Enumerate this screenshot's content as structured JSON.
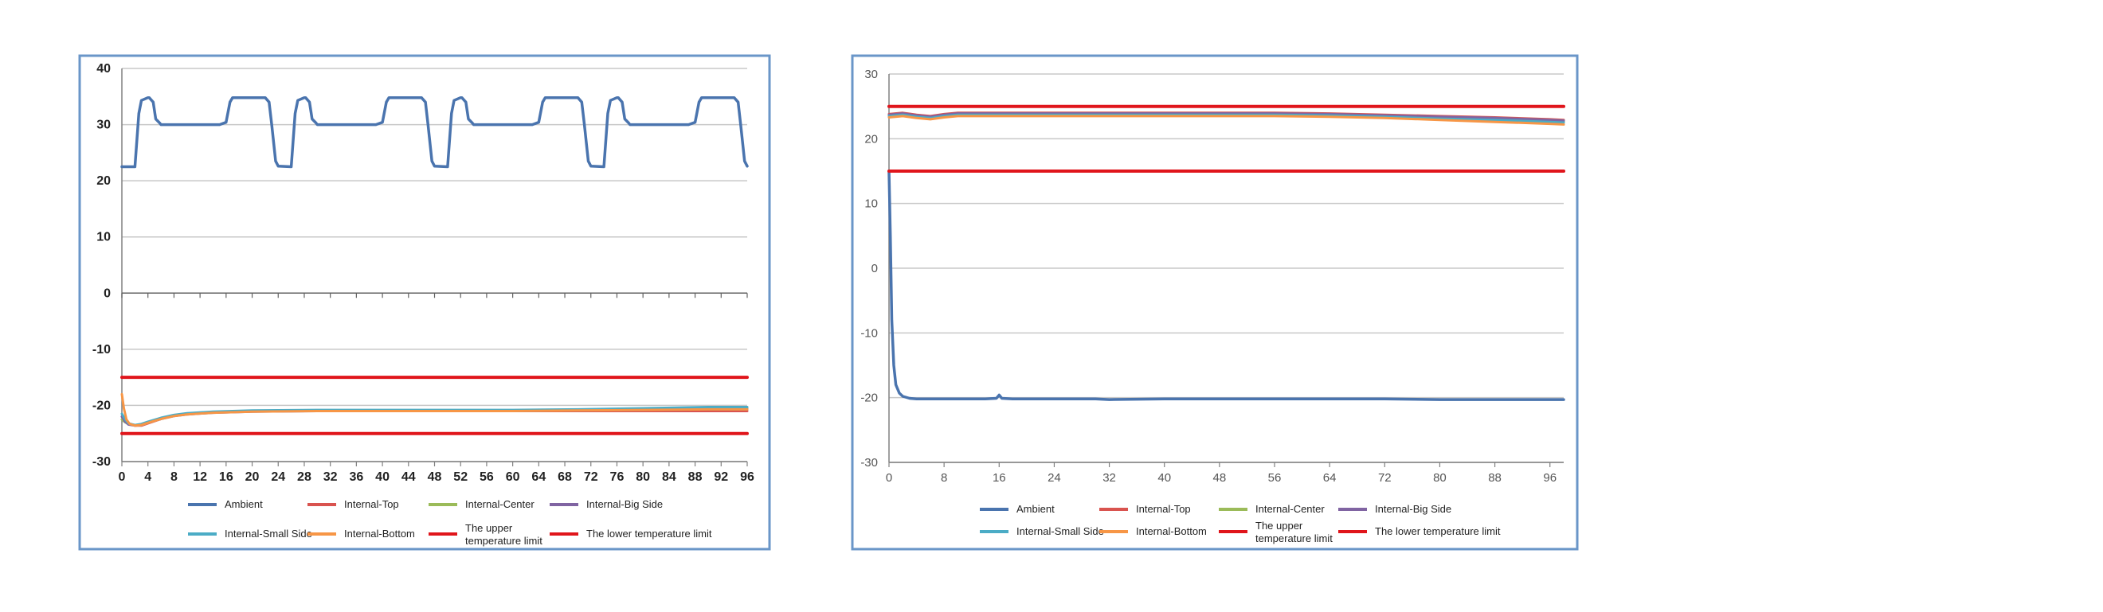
{
  "colors": {
    "border": "#6a96c8",
    "grid": "#c8c8c8",
    "axis": "#808080",
    "ambient": "#4a74ae",
    "internal_top": "#d9534f",
    "internal_center": "#9bbb59",
    "internal_big_side": "#8064a2",
    "internal_small_side": "#4bacc6",
    "internal_bottom": "#f79646",
    "upper_limit": "#e0151b",
    "lower_limit": "#e0151b"
  },
  "chart_data": [
    {
      "type": "line",
      "xlim": [
        0,
        96
      ],
      "ylim": [
        -30,
        40
      ],
      "xticks": [
        "0",
        "4",
        "8",
        "12",
        "16",
        "20",
        "24",
        "28",
        "32",
        "36",
        "40",
        "44",
        "48",
        "52",
        "56",
        "60",
        "64",
        "68",
        "72",
        "76",
        "80",
        "84",
        "88",
        "92",
        "96"
      ],
      "yticks": [
        "40",
        "30",
        "20",
        "10",
        "0",
        "-10",
        "-20",
        "-30"
      ],
      "grid": true,
      "legend_position": "bottom",
      "series": [
        {
          "name": "Ambient",
          "key": "ambient",
          "x": [
            0,
            2,
            2.6,
            3,
            4,
            4.2,
            4.8,
            5.2,
            5.8,
            6,
            10,
            15,
            16,
            16.6,
            17,
            22,
            22.6,
            23,
            23.6,
            24,
            26,
            26.6,
            27,
            28,
            28.2,
            28.8,
            29.2,
            29.8,
            30,
            34,
            39,
            40,
            40.6,
            41,
            46,
            46.6,
            47,
            47.6,
            48,
            50,
            50.6,
            51,
            52,
            52.2,
            52.8,
            53.2,
            53.8,
            54,
            58,
            63,
            64,
            64.6,
            65,
            70,
            70.6,
            71,
            71.6,
            72,
            74,
            74.6,
            75,
            76,
            76.2,
            76.8,
            77.2,
            77.8,
            78,
            82,
            87,
            88,
            88.6,
            89,
            94,
            94.6,
            95,
            95.6,
            96
          ],
          "y": [
            22.5,
            22.5,
            32,
            34.3,
            34.8,
            34.8,
            34,
            31,
            30.3,
            30,
            30,
            30,
            30.4,
            34,
            34.8,
            34.8,
            34,
            30,
            23.5,
            22.6,
            22.5,
            32,
            34.3,
            34.8,
            34.8,
            34,
            31,
            30.3,
            30,
            30,
            30,
            30.4,
            34,
            34.8,
            34.8,
            34,
            30,
            23.5,
            22.6,
            22.5,
            32,
            34.3,
            34.8,
            34.8,
            34,
            31,
            30.3,
            30,
            30,
            30,
            30.4,
            34,
            34.8,
            34.8,
            34,
            30,
            23.5,
            22.6,
            22.5,
            32,
            34.3,
            34.8,
            34.8,
            34,
            31,
            30.3,
            30,
            30,
            30,
            30.4,
            34,
            34.8,
            34.8,
            34,
            30,
            23.5,
            22.6
          ]
        },
        {
          "name": "Internal-Top",
          "key": "internal_top",
          "x": [
            0,
            0.5,
            1,
            2,
            3,
            4,
            6,
            8,
            10,
            14,
            20,
            30,
            40,
            50,
            60,
            70,
            80,
            90,
            96
          ],
          "y": [
            -22,
            -22.8,
            -23.2,
            -23.6,
            -23.6,
            -23.2,
            -22.4,
            -21.8,
            -21.5,
            -21.2,
            -21,
            -21,
            -21,
            -21,
            -21,
            -21,
            -21,
            -21,
            -21
          ]
        },
        {
          "name": "Internal-Center",
          "key": "internal_center",
          "x": [
            0,
            0.5,
            1,
            2,
            3,
            4,
            6,
            8,
            10,
            14,
            20,
            30,
            40,
            50,
            60,
            70,
            80,
            90,
            96
          ],
          "y": [
            -22.5,
            -23,
            -23.3,
            -23.5,
            -23.4,
            -23,
            -22.3,
            -21.8,
            -21.5,
            -21.2,
            -21,
            -20.9,
            -20.9,
            -20.9,
            -20.9,
            -20.8,
            -20.6,
            -20.5,
            -20.5
          ]
        },
        {
          "name": "Internal-Big Side",
          "key": "internal_big_side",
          "x": [
            0,
            0.5,
            1,
            2,
            3,
            4,
            6,
            8,
            10,
            14,
            20,
            30,
            40,
            50,
            60,
            70,
            80,
            90,
            96
          ],
          "y": [
            -22,
            -22.9,
            -23.4,
            -23.6,
            -23.5,
            -23.1,
            -22.4,
            -21.9,
            -21.6,
            -21.3,
            -21.1,
            -21,
            -21,
            -21,
            -21,
            -20.9,
            -20.8,
            -20.7,
            -20.7
          ]
        },
        {
          "name": "Internal-Small Side",
          "key": "internal_small_side",
          "x": [
            0,
            0.5,
            1,
            2,
            3,
            4,
            6,
            8,
            10,
            14,
            20,
            30,
            40,
            50,
            60,
            70,
            80,
            90,
            96
          ],
          "y": [
            -21.5,
            -22.5,
            -23.2,
            -23.5,
            -23.3,
            -22.9,
            -22.2,
            -21.7,
            -21.4,
            -21.1,
            -20.9,
            -20.8,
            -20.8,
            -20.8,
            -20.8,
            -20.7,
            -20.5,
            -20.3,
            -20.3
          ]
        },
        {
          "name": "Internal-Bottom",
          "key": "internal_bottom",
          "x": [
            0,
            0.3,
            0.7,
            1.2,
            2,
            3,
            4,
            6,
            8,
            10,
            14,
            20,
            30,
            40,
            50,
            60,
            70,
            80,
            90,
            96
          ],
          "y": [
            -18,
            -20.5,
            -22.5,
            -23.3,
            -23.6,
            -23.5,
            -23.1,
            -22.4,
            -21.9,
            -21.6,
            -21.3,
            -21.1,
            -21,
            -21,
            -21,
            -21,
            -20.9,
            -20.8,
            -20.7,
            -20.7
          ]
        },
        {
          "name": "The upper temperature limit",
          "key": "upper_limit",
          "x": [
            0,
            96
          ],
          "y": [
            -15,
            -15
          ]
        },
        {
          "name": "The lower temperature limit",
          "key": "lower_limit",
          "x": [
            0,
            96
          ],
          "y": [
            -25,
            -25
          ]
        }
      ],
      "legend": [
        {
          "key": "ambient",
          "label": "Ambient"
        },
        {
          "key": "internal_top",
          "label": "Internal-Top"
        },
        {
          "key": "internal_center",
          "label": "Internal-Center"
        },
        {
          "key": "internal_big_side",
          "label": "Internal-Big Side"
        },
        {
          "key": "internal_small_side",
          "label": "Internal-Small Side"
        },
        {
          "key": "internal_bottom",
          "label": "Internal-Bottom"
        },
        {
          "key": "upper_limit",
          "label": "The upper temperature limit"
        },
        {
          "key": "lower_limit",
          "label": "The lower temperature limit"
        }
      ]
    },
    {
      "type": "line",
      "xlim": [
        0,
        98
      ],
      "ylim": [
        -30,
        30
      ],
      "xticks": [
        "0",
        "8",
        "16",
        "24",
        "32",
        "40",
        "48",
        "56",
        "64",
        "72",
        "80",
        "88",
        "96"
      ],
      "yticks": [
        "30",
        "20",
        "10",
        "0",
        "-10",
        "-20",
        "-30"
      ],
      "grid": true,
      "legend_position": "bottom",
      "series": [
        {
          "name": "Ambient",
          "key": "ambient",
          "x": [
            0,
            0.2,
            0.4,
            0.7,
            1,
            1.5,
            2,
            3,
            4,
            6,
            10,
            14,
            15.6,
            16,
            16.4,
            18,
            24,
            30,
            32,
            40,
            48,
            56,
            64,
            72,
            80,
            88,
            96,
            98
          ],
          "y": [
            15,
            5,
            -8,
            -15,
            -18,
            -19.3,
            -19.8,
            -20.1,
            -20.2,
            -20.2,
            -20.2,
            -20.2,
            -20.1,
            -19.6,
            -20.1,
            -20.2,
            -20.2,
            -20.2,
            -20.3,
            -20.2,
            -20.2,
            -20.2,
            -20.2,
            -20.2,
            -20.3,
            -20.3,
            -20.3,
            -20.3
          ]
        },
        {
          "name": "Internal-Top",
          "key": "internal_top",
          "x": [
            0,
            2,
            4,
            6,
            8,
            10,
            16,
            24,
            32,
            40,
            48,
            56,
            64,
            72,
            80,
            88,
            96,
            98
          ],
          "y": [
            23.8,
            24,
            23.7,
            23.5,
            23.8,
            24,
            24,
            24,
            24,
            24,
            24,
            24,
            23.9,
            23.7,
            23.5,
            23.3,
            23,
            22.9
          ]
        },
        {
          "name": "Internal-Center",
          "key": "internal_center",
          "x": [
            0,
            2,
            4,
            6,
            8,
            10,
            16,
            24,
            32,
            40,
            48,
            56,
            64,
            72,
            80,
            88,
            96,
            98
          ],
          "y": [
            23.6,
            23.8,
            23.5,
            23.3,
            23.6,
            23.8,
            23.8,
            23.8,
            23.8,
            23.8,
            23.8,
            23.8,
            23.7,
            23.5,
            23.3,
            23.1,
            22.8,
            22.7
          ]
        },
        {
          "name": "Internal-Big Side",
          "key": "internal_big_side",
          "x": [
            0,
            2,
            4,
            6,
            8,
            10,
            16,
            24,
            32,
            40,
            48,
            56,
            64,
            72,
            80,
            88,
            96,
            98
          ],
          "y": [
            23.7,
            23.9,
            23.6,
            23.4,
            23.7,
            23.9,
            23.9,
            23.9,
            23.9,
            23.9,
            23.9,
            23.9,
            23.8,
            23.6,
            23.4,
            23.2,
            22.9,
            22.8
          ]
        },
        {
          "name": "Internal-Small Side",
          "key": "internal_small_side",
          "x": [
            0,
            2,
            4,
            6,
            8,
            10,
            16,
            24,
            32,
            40,
            48,
            56,
            64,
            72,
            80,
            88,
            96,
            98
          ],
          "y": [
            23.5,
            23.7,
            23.4,
            23.2,
            23.5,
            23.7,
            23.7,
            23.7,
            23.7,
            23.7,
            23.7,
            23.7,
            23.6,
            23.4,
            23.1,
            22.9,
            22.6,
            22.5
          ]
        },
        {
          "name": "Internal-Bottom",
          "key": "internal_bottom",
          "x": [
            0,
            2,
            4,
            6,
            8,
            10,
            16,
            24,
            32,
            40,
            48,
            56,
            64,
            72,
            80,
            88,
            96,
            98
          ],
          "y": [
            23.3,
            23.5,
            23.2,
            23,
            23.3,
            23.5,
            23.5,
            23.5,
            23.5,
            23.5,
            23.5,
            23.5,
            23.4,
            23.2,
            22.9,
            22.6,
            22.3,
            22.2
          ]
        },
        {
          "name": "The upper temperature limit",
          "key": "upper_limit",
          "x": [
            0,
            98
          ],
          "y": [
            25,
            25
          ]
        },
        {
          "name": "The lower temperature limit",
          "key": "lower_limit",
          "x": [
            0,
            98
          ],
          "y": [
            15,
            15
          ]
        }
      ],
      "legend": [
        {
          "key": "ambient",
          "label": "Ambient"
        },
        {
          "key": "internal_top",
          "label": "Internal-Top"
        },
        {
          "key": "internal_center",
          "label": "Internal-Center"
        },
        {
          "key": "internal_big_side",
          "label": "Internal-Big Side"
        },
        {
          "key": "internal_small_side",
          "label": "Internal-Small Side"
        },
        {
          "key": "internal_bottom",
          "label": "Internal-Bottom"
        },
        {
          "key": "upper_limit",
          "label": "The upper temperature limit"
        },
        {
          "key": "lower_limit",
          "label": "The lower temperature limit"
        }
      ]
    }
  ]
}
